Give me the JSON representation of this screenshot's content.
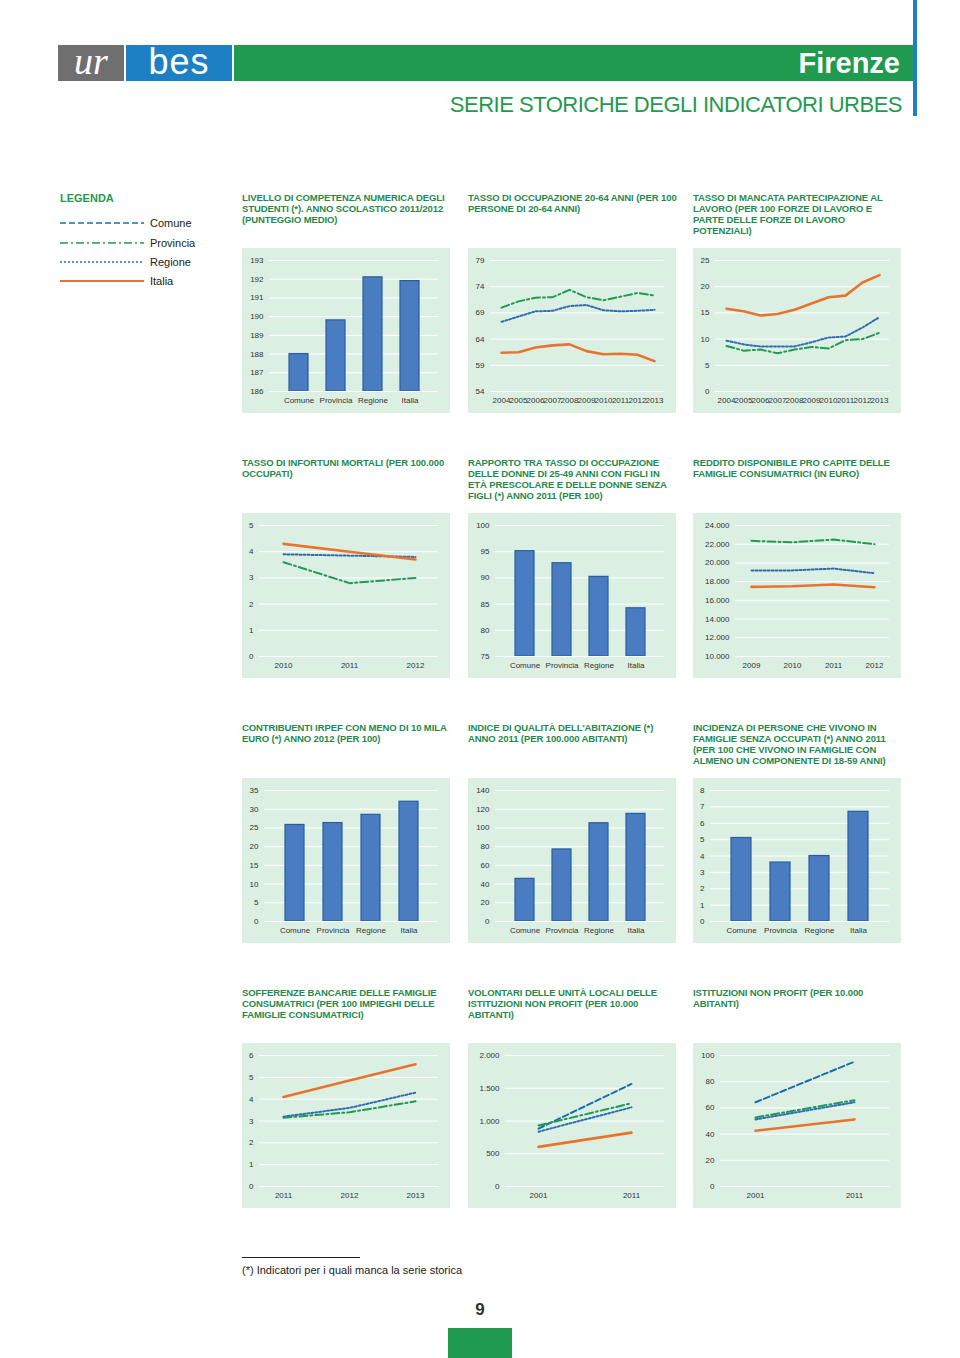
{
  "header": {
    "logo": [
      "ur",
      "bes"
    ],
    "city": "Firenze",
    "subtitle": "SERIE STORICHE DEGLI INDICATORI URBES"
  },
  "legend": {
    "title": "LEGENDA",
    "entries": [
      {
        "name": "Comune",
        "color": "#1a6ea8",
        "line_style": "dashed"
      },
      {
        "name": "Provincia",
        "color": "#1e9a55",
        "line_style": "dashdot"
      },
      {
        "name": "Regione",
        "color": "#2e6db4",
        "line_style": "dotted"
      },
      {
        "name": "Italia",
        "color": "#e8742c",
        "line_style": "solid"
      }
    ]
  },
  "chart_data": [
    {
      "type": "bar",
      "title": "LIVELLO DI COMPETENZA NUMERICA DEGLI STUDENTI (*). ANNO SCOLASTICO 2011/2012 (PUNTEGGIO MEDIO)",
      "categories": [
        "Comune",
        "Provincia",
        "Regione",
        "Italia"
      ],
      "values": [
        188.0,
        189.8,
        192.1,
        191.9
      ],
      "color": "#4a7cc2",
      "ylim": [
        186,
        193
      ],
      "yticks": [
        186,
        187,
        188,
        189,
        190,
        191,
        192,
        193
      ],
      "grid": true
    },
    {
      "type": "line",
      "title": "TASSO DI OCCUPAZIONE 20-64 ANNI (PER 100 PERSONE DI 20-64 ANNI)",
      "x": [
        2004,
        2005,
        2006,
        2007,
        2008,
        2009,
        2010,
        2011,
        2012,
        2013
      ],
      "series": [
        {
          "name": "Provincia",
          "color": "#1e9a55",
          "line_style": "dashdot",
          "values": [
            70.0,
            71.2,
            71.9,
            72.0,
            73.4,
            72.0,
            71.4,
            72.1,
            72.8,
            72.3
          ]
        },
        {
          "name": "Regione",
          "color": "#2e6db4",
          "line_style": "dotted",
          "values": [
            67.3,
            68.3,
            69.3,
            69.4,
            70.3,
            70.5,
            69.5,
            69.3,
            69.4,
            69.6
          ]
        },
        {
          "name": "Italia",
          "color": "#e8742c",
          "line_style": "solid",
          "values": [
            61.4,
            61.5,
            62.4,
            62.8,
            63.0,
            61.7,
            61.1,
            61.2,
            61.0,
            59.8
          ]
        }
      ],
      "ylim": [
        54,
        79
      ],
      "yticks": [
        54,
        59,
        64,
        69,
        74,
        79
      ],
      "grid": true
    },
    {
      "type": "line",
      "title": "TASSO DI MANCATA PARTECIPAZIONE AL LAVORO (PER 100 FORZE DI LAVORO E PARTE DELLE FORZE DI LAVORO POTENZIALI)",
      "x": [
        2004,
        2005,
        2006,
        2007,
        2008,
        2009,
        2010,
        2011,
        2012,
        2013
      ],
      "series": [
        {
          "name": "Provincia",
          "color": "#1e9a55",
          "line_style": "dashdot",
          "values": [
            8.7,
            7.8,
            8.0,
            7.3,
            8.0,
            8.5,
            8.2,
            9.8,
            10.0,
            11.2
          ]
        },
        {
          "name": "Regione",
          "color": "#2e6db4",
          "line_style": "dotted",
          "values": [
            9.7,
            9.0,
            8.6,
            8.6,
            8.6,
            9.4,
            10.3,
            10.5,
            12.2,
            14.2
          ]
        },
        {
          "name": "Italia",
          "color": "#e8742c",
          "line_style": "solid",
          "values": [
            15.8,
            15.3,
            14.5,
            14.8,
            15.6,
            16.8,
            18.0,
            18.3,
            20.8,
            22.2
          ]
        }
      ],
      "ylim": [
        0,
        25
      ],
      "yticks": [
        0,
        5,
        10,
        15,
        20,
        25
      ],
      "grid": true
    },
    {
      "type": "line",
      "title": "TASSO DI INFORTUNI MORTALI (PER 100.000 OCCUPATI)",
      "x": [
        2010,
        2011,
        2012
      ],
      "series": [
        {
          "name": "Provincia",
          "color": "#1e9a55",
          "line_style": "dashdot",
          "values": [
            3.6,
            2.8,
            3.0
          ]
        },
        {
          "name": "Regione",
          "color": "#2e6db4",
          "line_style": "dotted",
          "values": [
            3.9,
            3.85,
            3.8
          ]
        },
        {
          "name": "Italia",
          "color": "#e8742c",
          "line_style": "solid",
          "values": [
            4.3,
            4.0,
            3.7
          ]
        }
      ],
      "ylim": [
        0,
        5
      ],
      "yticks": [
        0,
        1,
        2,
        3,
        4,
        5
      ],
      "grid": true
    },
    {
      "type": "bar",
      "title": "RAPPORTO TRA TASSO DI OCCUPAZIONE DELLE DONNE DI 25-49 ANNI CON FIGLI IN ETÀ PRESCOLARE E DELLE DONNE SENZA FIGLI (*) ANNO 2011 (PER 100)",
      "categories": [
        "Comune",
        "Provincia",
        "Regione",
        "Italia"
      ],
      "values": [
        95.1,
        92.8,
        90.2,
        84.2
      ],
      "color": "#4a7cc2",
      "ylim": [
        75,
        100
      ],
      "yticks": [
        75,
        80,
        85,
        90,
        95,
        100
      ],
      "grid": true
    },
    {
      "type": "line",
      "title": "REDDITO DISPONIBILE PRO CAPITE DELLE FAMIGLIE CONSUMATRICI (IN EURO)",
      "x": [
        2009,
        2010,
        2011,
        2012
      ],
      "series": [
        {
          "name": "Provincia",
          "color": "#1e9a55",
          "line_style": "dashdot",
          "values": [
            22360,
            22200,
            22500,
            22000
          ]
        },
        {
          "name": "Regione",
          "color": "#2e6db4",
          "line_style": "dotted",
          "values": [
            19200,
            19200,
            19400,
            18900
          ]
        },
        {
          "name": "Italia",
          "color": "#e8742c",
          "line_style": "solid",
          "values": [
            17440,
            17500,
            17700,
            17400
          ]
        }
      ],
      "ylim": [
        10000,
        24000
      ],
      "yticks": [
        {
          "value": 10000,
          "label": "10.000"
        },
        {
          "value": 12000,
          "label": "12.000"
        },
        {
          "value": 14000,
          "label": "14.000"
        },
        {
          "value": 16000,
          "label": "16.000"
        },
        {
          "value": 18000,
          "label": "18.000"
        },
        {
          "value": 20000,
          "label": "20.000"
        },
        {
          "value": 22000,
          "label": "22.000"
        },
        {
          "value": 24000,
          "label": "24.000"
        }
      ],
      "grid": true
    },
    {
      "type": "bar",
      "title": "CONTRIBUENTI IRPEF CON MENO DI 10 MILA EURO (*) ANNO 2012 (PER 100)",
      "categories": [
        "Comune",
        "Provincia",
        "Regione",
        "Italia"
      ],
      "values": [
        25.8,
        26.3,
        28.5,
        32.0
      ],
      "color": "#4a7cc2",
      "ylim": [
        0,
        35
      ],
      "yticks": [
        0,
        5,
        10,
        15,
        20,
        25,
        30,
        35
      ],
      "grid": true
    },
    {
      "type": "bar",
      "title": "INDICE DI QUALITÀ DELL'ABITAZIONE (*) ANNO 2011 (PER 100.000 ABITANTI)",
      "categories": [
        "Comune",
        "Provincia",
        "Regione",
        "Italia"
      ],
      "values": [
        45.6,
        77,
        105,
        115
      ],
      "color": "#4a7cc2",
      "ylim": [
        0,
        140
      ],
      "yticks": [
        0,
        20,
        40,
        60,
        80,
        100,
        120,
        140
      ],
      "grid": true
    },
    {
      "type": "bar",
      "title": "INCIDENZA DI PERSONE CHE VIVONO IN FAMIGLIE SENZA OCCUPATI (*) ANNO 2011 (PER 100 CHE VIVONO IN FAMIGLIE CON ALMENO UN COMPONENTE DI 18-59 ANNI)",
      "categories": [
        "Comune",
        "Provincia",
        "Regione",
        "Italia"
      ],
      "values": [
        5.1,
        3.6,
        4.0,
        6.7
      ],
      "color": "#4a7cc2",
      "ylim": [
        0,
        8
      ],
      "yticks": [
        0,
        1,
        2,
        3,
        4,
        5,
        6,
        7,
        8
      ],
      "grid": true
    },
    {
      "type": "line",
      "title": "SOFFERENZE BANCARIE DELLE FAMIGLIE CONSUMATRICI (PER 100 IMPIEGHI DELLE FAMIGLIE CONSUMATRICI)",
      "x": [
        2011,
        2012,
        2013
      ],
      "series": [
        {
          "name": "Provincia",
          "color": "#1e9a55",
          "line_style": "dashdot",
          "values": [
            3.15,
            3.4,
            3.9
          ]
        },
        {
          "name": "Regione",
          "color": "#2e6db4",
          "line_style": "dotted",
          "values": [
            3.2,
            3.6,
            4.3
          ]
        },
        {
          "name": "Italia",
          "color": "#e8742c",
          "line_style": "solid",
          "values": [
            4.1,
            4.85,
            5.6
          ]
        }
      ],
      "ylim": [
        0,
        6
      ],
      "yticks": [
        0,
        1,
        2,
        3,
        4,
        5,
        6
      ],
      "grid": true
    },
    {
      "type": "line",
      "title": "VOLONTARI DELLE UNITÀ LOCALI DELLE ISTITUZIONI NON PROFIT (PER 10.000 ABITANTI)",
      "x": [
        2001,
        2011
      ],
      "series": [
        {
          "name": "Comune",
          "color": "#1a6ea8",
          "line_style": "dashed",
          "values": [
            884,
            1566
          ]
        },
        {
          "name": "Provincia",
          "color": "#1e9a55",
          "line_style": "dashdot",
          "values": [
            930,
            1271
          ]
        },
        {
          "name": "Regione",
          "color": "#2e6db4",
          "line_style": "dotted",
          "values": [
            837,
            1209
          ]
        },
        {
          "name": "Italia",
          "color": "#e8742c",
          "line_style": "solid",
          "values": [
            605,
            822
          ]
        }
      ],
      "ylim": [
        0,
        2000
      ],
      "yticks": [
        0,
        500,
        {
          "value": 1000,
          "label": "1.000"
        },
        {
          "value": 1500,
          "label": "1.500"
        },
        {
          "value": 2000,
          "label": "2.000"
        }
      ],
      "grid": true
    },
    {
      "type": "line",
      "title": "ISTITUZIONI NON PROFIT (PER 10.000 ABITANTI)",
      "x": [
        2001,
        2011
      ],
      "series": [
        {
          "name": "Comune",
          "color": "#1a6ea8",
          "line_style": "dashed",
          "values": [
            64.3,
            95.3
          ]
        },
        {
          "name": "Provincia",
          "color": "#1e9a55",
          "line_style": "dashdot",
          "values": [
            52.7,
            65.9
          ]
        },
        {
          "name": "Regione",
          "color": "#2e6db4",
          "line_style": "dotted",
          "values": [
            51.2,
            64.3
          ]
        },
        {
          "name": "Italia",
          "color": "#e8742c",
          "line_style": "solid",
          "values": [
            42.6,
            51.2
          ]
        }
      ],
      "ylim": [
        0,
        100
      ],
      "yticks": [
        0,
        20,
        40,
        60,
        80,
        100
      ],
      "grid": true
    }
  ],
  "footnote": "(*) Indicatori per i quali manca la serie storica",
  "page_number": "9"
}
